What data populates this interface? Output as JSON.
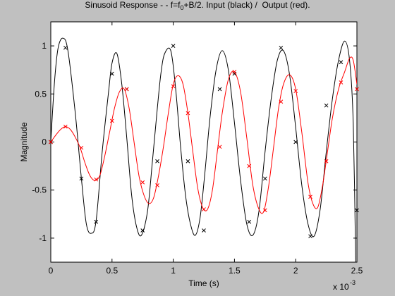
{
  "chart_data": {
    "type": "line",
    "title": {
      "prefix": "Sinusoid Response - - f=f",
      "subscript": "0",
      "suffix": "+B/2. Input (black) /  Output (red)."
    },
    "xlabel": "Time (s)",
    "ylabel": "Magnitude",
    "x_multiplier_label": "x 10",
    "x_multiplier_exponent": "-3",
    "xlim": [
      0,
      2.5
    ],
    "ylim": [
      -1.25,
      1.25
    ],
    "xticks": [
      0,
      0.5,
      1,
      1.5,
      2,
      2.5
    ],
    "xtick_labels": [
      "0",
      "0.5",
      "1",
      "1.5",
      "2",
      "2.5"
    ],
    "yticks": [
      -1,
      -0.5,
      0,
      0.5,
      1
    ],
    "ytick_labels": [
      "-1",
      "-0.5",
      "0",
      "0.5",
      "1"
    ],
    "grid": false,
    "colors": {
      "figure_bg": "#c0c0c0",
      "axes_bg": "#ffffff",
      "input": "#000000",
      "output": "#ff0000"
    },
    "series": [
      {
        "color": "#000000",
        "curve": [
          [
            0,
            0
          ],
          [
            0.03,
            0.62
          ],
          [
            0.06,
            0.98
          ],
          [
            0.1,
            1.08
          ],
          [
            0.14,
            0.95
          ],
          [
            0.2,
            0.3
          ],
          [
            0.25,
            -0.38
          ],
          [
            0.29,
            -0.85
          ],
          [
            0.33,
            -0.95
          ],
          [
            0.37,
            -0.82
          ],
          [
            0.42,
            -0.1
          ],
          [
            0.47,
            0.5
          ],
          [
            0.5,
            0.82
          ],
          [
            0.54,
            0.92
          ],
          [
            0.58,
            0.6
          ],
          [
            0.62,
            0.05
          ],
          [
            0.66,
            -0.55
          ],
          [
            0.7,
            -0.88
          ],
          [
            0.74,
            -0.97
          ],
          [
            0.79,
            -0.72
          ],
          [
            0.83,
            -0.2
          ],
          [
            0.87,
            0.35
          ],
          [
            0.9,
            0.72
          ],
          [
            0.93,
            0.92
          ],
          [
            0.98,
            0.95
          ],
          [
            1.02,
            0.55
          ],
          [
            1.06,
            -0.05
          ],
          [
            1.1,
            -0.55
          ],
          [
            1.14,
            -0.85
          ],
          [
            1.18,
            -0.97
          ],
          [
            1.22,
            -0.78
          ],
          [
            1.26,
            -0.3
          ],
          [
            1.3,
            0.25
          ],
          [
            1.35,
            0.75
          ],
          [
            1.4,
            0.95
          ],
          [
            1.45,
            0.75
          ],
          [
            1.5,
            0.2
          ],
          [
            1.55,
            -0.4
          ],
          [
            1.6,
            -0.85
          ],
          [
            1.65,
            -0.97
          ],
          [
            1.7,
            -0.72
          ],
          [
            1.75,
            -0.1
          ],
          [
            1.8,
            0.45
          ],
          [
            1.85,
            0.85
          ],
          [
            1.9,
            0.95
          ],
          [
            1.95,
            0.7
          ],
          [
            2.0,
            0.15
          ],
          [
            2.05,
            -0.45
          ],
          [
            2.1,
            -0.85
          ],
          [
            2.15,
            -0.98
          ],
          [
            2.2,
            -0.7
          ],
          [
            2.25,
            -0.1
          ],
          [
            2.3,
            0.45
          ],
          [
            2.35,
            0.85
          ],
          [
            2.4,
            1.05
          ],
          [
            2.44,
            0.85
          ],
          [
            2.47,
            0.2
          ],
          [
            2.49,
            -1.25
          ]
        ],
        "markers": [
          [
            0,
            0
          ],
          [
            0.12,
            0.98
          ],
          [
            0.25,
            -0.38
          ],
          [
            0.37,
            -0.83
          ],
          [
            0.5,
            0.71
          ],
          [
            0.62,
            0.55
          ],
          [
            0.75,
            -0.92
          ],
          [
            0.87,
            -0.2
          ],
          [
            1.0,
            1.0
          ],
          [
            1.12,
            -0.2
          ],
          [
            1.25,
            -0.92
          ],
          [
            1.38,
            0.55
          ],
          [
            1.5,
            0.71
          ],
          [
            1.62,
            -0.83
          ],
          [
            1.75,
            -0.38
          ],
          [
            1.88,
            0.98
          ],
          [
            2.0,
            0.0
          ],
          [
            2.12,
            -0.98
          ],
          [
            2.25,
            0.38
          ],
          [
            2.37,
            0.83
          ],
          [
            2.5,
            -0.71
          ]
        ]
      },
      {
        "color": "#ff0000",
        "curve": [
          [
            0,
            0
          ],
          [
            0.04,
            0.07
          ],
          [
            0.08,
            0.13
          ],
          [
            0.12,
            0.16
          ],
          [
            0.16,
            0.13
          ],
          [
            0.2,
            0.05
          ],
          [
            0.24,
            -0.06
          ],
          [
            0.28,
            -0.22
          ],
          [
            0.32,
            -0.35
          ],
          [
            0.36,
            -0.4
          ],
          [
            0.4,
            -0.35
          ],
          [
            0.44,
            -0.15
          ],
          [
            0.48,
            0.1
          ],
          [
            0.52,
            0.35
          ],
          [
            0.56,
            0.52
          ],
          [
            0.6,
            0.55
          ],
          [
            0.64,
            0.35
          ],
          [
            0.68,
            0.0
          ],
          [
            0.72,
            -0.35
          ],
          [
            0.76,
            -0.55
          ],
          [
            0.8,
            -0.64
          ],
          [
            0.84,
            -0.58
          ],
          [
            0.88,
            -0.35
          ],
          [
            0.92,
            -0.05
          ],
          [
            0.96,
            0.3
          ],
          [
            1.0,
            0.6
          ],
          [
            1.04,
            0.69
          ],
          [
            1.08,
            0.6
          ],
          [
            1.12,
            0.3
          ],
          [
            1.16,
            -0.1
          ],
          [
            1.2,
            -0.48
          ],
          [
            1.24,
            -0.68
          ],
          [
            1.28,
            -0.7
          ],
          [
            1.32,
            -0.5
          ],
          [
            1.36,
            -0.1
          ],
          [
            1.4,
            0.3
          ],
          [
            1.45,
            0.65
          ],
          [
            1.5,
            0.73
          ],
          [
            1.55,
            0.52
          ],
          [
            1.6,
            0.05
          ],
          [
            1.65,
            -0.45
          ],
          [
            1.7,
            -0.7
          ],
          [
            1.74,
            -0.72
          ],
          [
            1.78,
            -0.45
          ],
          [
            1.82,
            -0.05
          ],
          [
            1.86,
            0.35
          ],
          [
            1.9,
            0.6
          ],
          [
            1.95,
            0.7
          ],
          [
            2.0,
            0.55
          ],
          [
            2.05,
            0.1
          ],
          [
            2.1,
            -0.42
          ],
          [
            2.14,
            -0.64
          ],
          [
            2.18,
            -0.68
          ],
          [
            2.22,
            -0.45
          ],
          [
            2.26,
            -0.1
          ],
          [
            2.3,
            0.25
          ],
          [
            2.35,
            0.55
          ],
          [
            2.4,
            0.73
          ],
          [
            2.44,
            0.87
          ],
          [
            2.47,
            0.85
          ],
          [
            2.5,
            0.6
          ]
        ],
        "markers": [
          [
            0,
            0
          ],
          [
            0.12,
            0.16
          ],
          [
            0.25,
            -0.06
          ],
          [
            0.37,
            -0.39
          ],
          [
            0.5,
            0.22
          ],
          [
            0.62,
            0.55
          ],
          [
            0.75,
            -0.42
          ],
          [
            0.87,
            -0.45
          ],
          [
            1.0,
            0.58
          ],
          [
            1.12,
            0.3
          ],
          [
            1.25,
            -0.7
          ],
          [
            1.38,
            -0.05
          ],
          [
            1.5,
            0.73
          ],
          [
            1.62,
            -0.25
          ],
          [
            1.75,
            -0.71
          ],
          [
            1.88,
            0.42
          ],
          [
            2.0,
            0.53
          ],
          [
            2.12,
            -0.57
          ],
          [
            2.25,
            -0.2
          ],
          [
            2.37,
            0.62
          ],
          [
            2.5,
            0.55
          ]
        ]
      }
    ]
  }
}
